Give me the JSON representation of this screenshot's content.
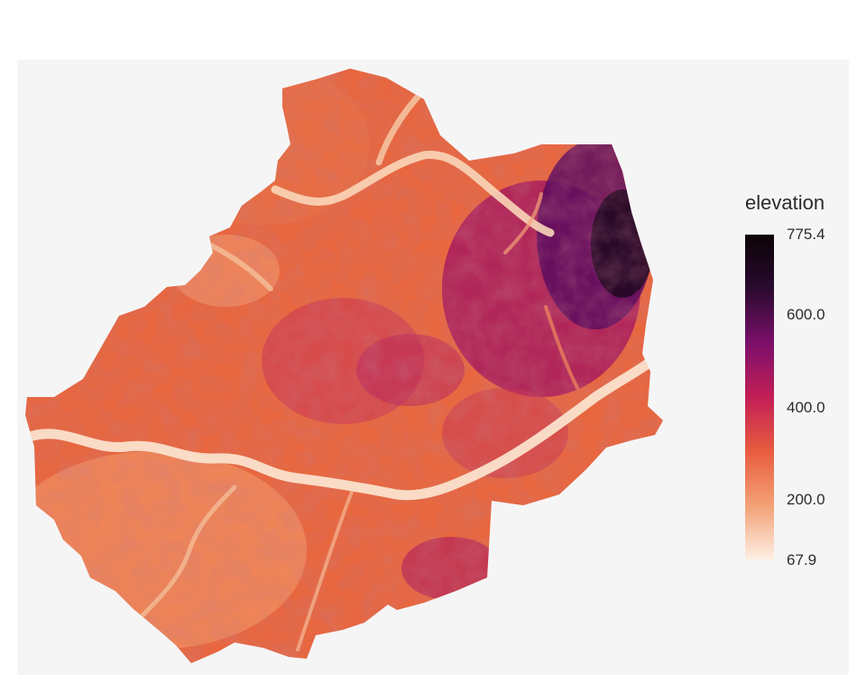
{
  "map": {
    "variable": "elevation",
    "min": 67.9,
    "max": 775.4,
    "colormap": [
      "#fdf0e6",
      "#f3a276",
      "#e85d3f",
      "#c31f56",
      "#7c0f6b",
      "#2a0a30",
      "#0b0406"
    ]
  },
  "legend": {
    "title": "elevation",
    "labels": [
      {
        "text": "775.4",
        "value": 775.4
      },
      {
        "text": "600.0",
        "value": 600.0
      },
      {
        "text": "400.0",
        "value": 400.0
      },
      {
        "text": "200.0",
        "value": 200.0
      },
      {
        "text": "67.9",
        "value": 67.9
      }
    ]
  }
}
